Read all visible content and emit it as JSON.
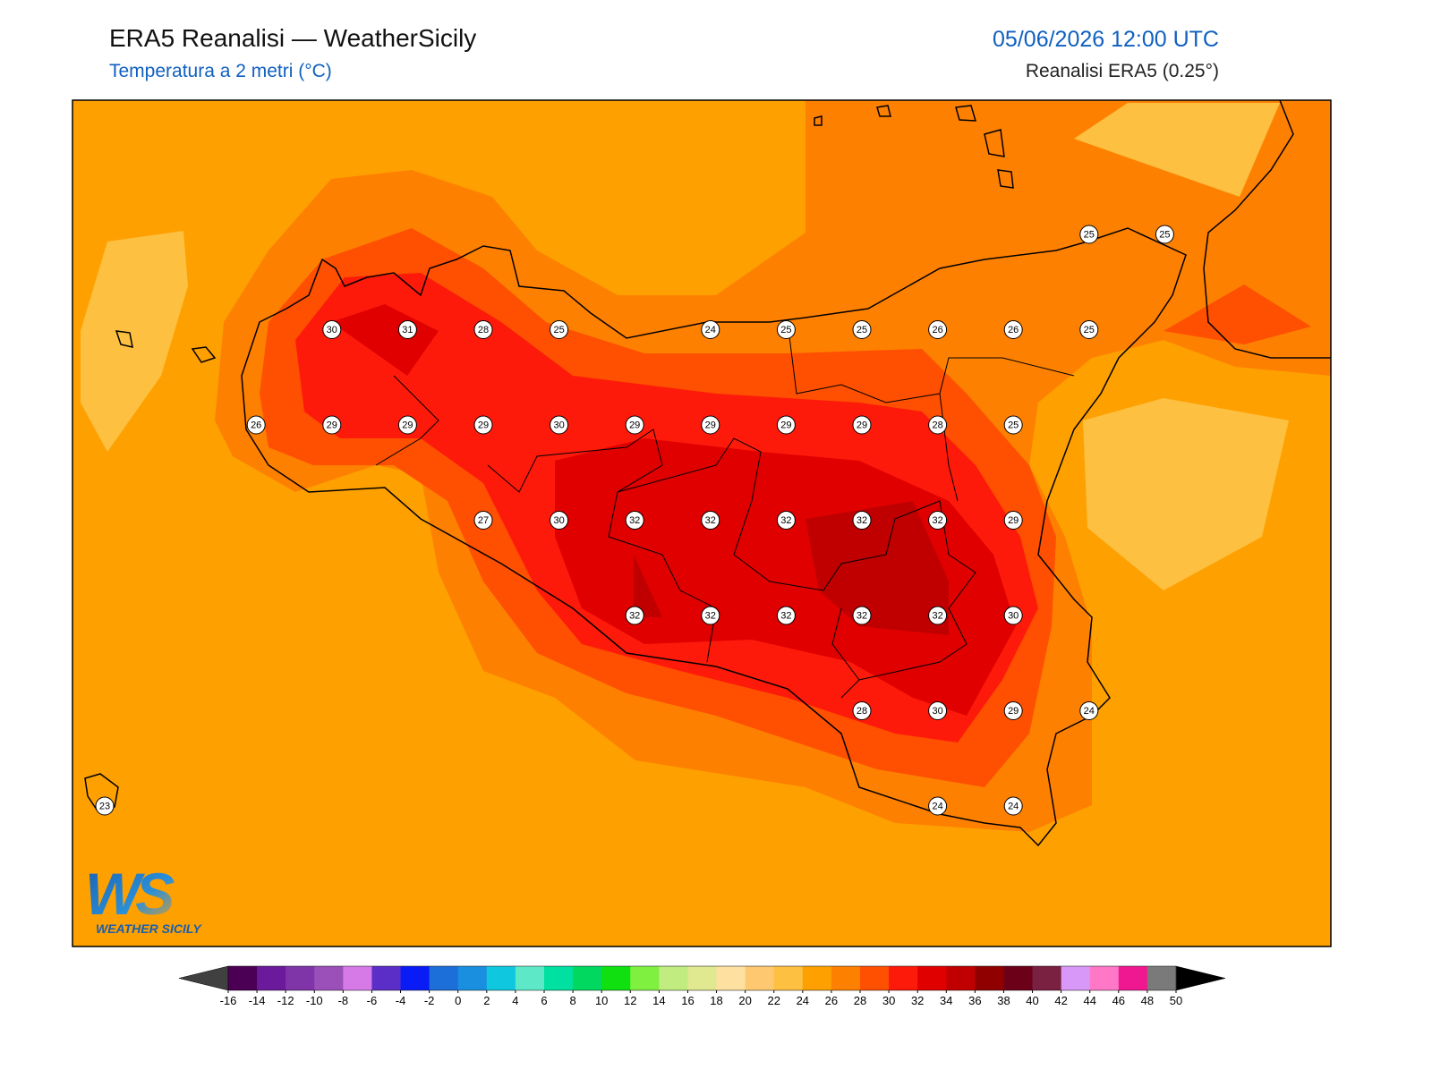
{
  "header": {
    "title": "ERA5 Reanalisi — WeatherSicily",
    "subtitle": "Temperatura a 2 metri (°C)",
    "datetime": "05/06/2026 12:00 UTC",
    "source": "Reanalisi ERA5 (0.25°)"
  },
  "map": {
    "stations": [
      [
        null,
        null,
        null,
        null,
        null,
        null,
        null,
        null,
        null,
        null,
        null,
        null,
        null,
        25,
        25
      ],
      [
        null,
        null,
        null,
        30,
        31,
        28,
        25,
        null,
        24,
        25,
        25,
        26,
        26,
        25,
        null
      ],
      [
        null,
        null,
        26,
        29,
        29,
        29,
        30,
        29,
        29,
        29,
        29,
        28,
        25,
        null,
        null
      ],
      [
        null,
        null,
        null,
        null,
        null,
        27,
        30,
        32,
        32,
        32,
        32,
        32,
        29,
        null,
        null
      ],
      [
        null,
        null,
        null,
        null,
        null,
        null,
        null,
        32,
        32,
        32,
        32,
        32,
        30,
        null,
        null
      ],
      [
        null,
        null,
        null,
        null,
        null,
        null,
        null,
        null,
        null,
        null,
        28,
        30,
        29,
        24,
        null
      ],
      [
        23,
        null,
        null,
        null,
        null,
        null,
        null,
        null,
        null,
        null,
        null,
        24,
        24,
        null,
        null
      ]
    ]
  },
  "logo": {
    "text": "WS",
    "caption": "WEATHER SICILY"
  },
  "colorbar": {
    "ticks": [
      -16,
      -14,
      -12,
      -10,
      -8,
      -6,
      -4,
      -2,
      0,
      2,
      4,
      6,
      8,
      10,
      12,
      14,
      16,
      18,
      20,
      22,
      24,
      26,
      28,
      30,
      32,
      34,
      36,
      38,
      40,
      42,
      44,
      46,
      48,
      50
    ],
    "colors": [
      "#4b0055",
      "#6a1a9a",
      "#7f35a8",
      "#9b4fb8",
      "#d67ae8",
      "#5b2ec8",
      "#0a1cf5",
      "#1c6fd8",
      "#1a8fe0",
      "#0fc8e0",
      "#5de8c8",
      "#00e0a0",
      "#00d860",
      "#10e010",
      "#80f040",
      "#c0ec80",
      "#e0e890",
      "#fee0a0",
      "#fdc870",
      "#fdc040",
      "#fea000",
      "#fe8000",
      "#fe5000",
      "#fe1a0a",
      "#e00000",
      "#c00000",
      "#900000",
      "#6b0018",
      "#7a2040",
      "#d898f8",
      "#ff78c8",
      "#f01890",
      "#7a7a7a",
      "#3a3a3a"
    ],
    "under": "#404040",
    "over": "#000000"
  }
}
